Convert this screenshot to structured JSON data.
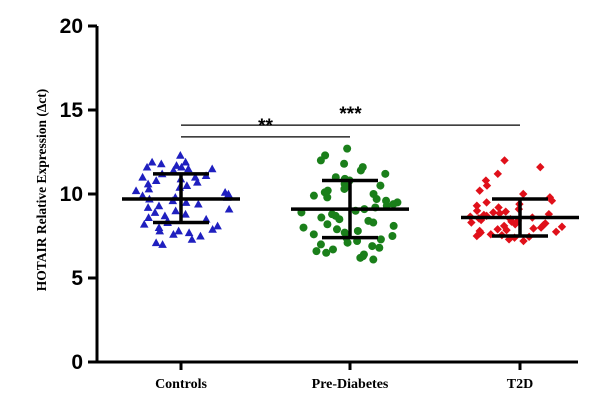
{
  "chart_data": {
    "type": "scatter",
    "ylabel": "HOTAIR Relative Expression (Δct)",
    "ylim": [
      0,
      20
    ],
    "yticks": [
      "0",
      "5",
      "10",
      "15",
      "20"
    ],
    "categories": [
      "Controls",
      "Pre-Diabetes",
      "T2D"
    ],
    "series": [
      {
        "category": "Controls",
        "marker": "triangle",
        "color": "#1f1fbf",
        "mean": 9.7,
        "sd_low": 8.3,
        "sd_high": 11.2,
        "values": [
          12.3,
          11.9,
          11.9,
          11.8,
          11.7,
          11.6,
          11.6,
          11.5,
          11.5,
          11.4,
          11.2,
          11.1,
          11.0,
          11.0,
          10.9,
          10.8,
          10.7,
          10.6,
          10.5,
          10.4,
          10.3,
          10.2,
          10.1,
          10.0,
          9.9,
          9.8,
          9.8,
          9.7,
          9.6,
          9.5,
          9.4,
          9.3,
          9.2,
          9.1,
          9.0,
          8.9,
          8.8,
          8.7,
          8.6,
          8.5,
          8.4,
          8.3,
          8.2,
          8.1,
          8.0,
          7.9,
          7.8,
          7.8,
          7.7,
          7.6,
          7.5,
          7.3,
          7.1,
          7.0
        ]
      },
      {
        "category": "Pre-Diabetes",
        "marker": "circle",
        "color": "#1a7f1a",
        "mean": 9.1,
        "sd_low": 7.4,
        "sd_high": 10.8,
        "values": [
          12.7,
          12.3,
          12.0,
          11.8,
          11.6,
          11.4,
          11.2,
          11.0,
          10.9,
          10.8,
          10.6,
          10.5,
          10.4,
          10.3,
          10.2,
          10.1,
          10.0,
          9.9,
          9.8,
          9.7,
          9.6,
          9.5,
          9.4,
          9.3,
          9.2,
          9.1,
          9.0,
          8.9,
          8.8,
          8.7,
          8.6,
          8.5,
          8.4,
          8.3,
          8.2,
          8.1,
          8.0,
          7.9,
          7.8,
          7.7,
          7.6,
          7.5,
          7.4,
          7.3,
          7.2,
          7.1,
          7.0,
          6.9,
          6.8,
          6.7,
          6.6,
          6.5,
          6.4,
          6.3,
          6.2,
          6.1
        ]
      },
      {
        "category": "T2D",
        "marker": "diamond",
        "color": "#e0101a",
        "mean": 8.6,
        "sd_low": 7.5,
        "sd_high": 9.7,
        "values": [
          12.0,
          11.6,
          11.2,
          10.8,
          10.5,
          10.2,
          10.0,
          9.8,
          9.6,
          9.5,
          9.4,
          9.3,
          9.2,
          9.1,
          9.0,
          8.95,
          8.9,
          8.85,
          8.8,
          8.75,
          8.7,
          8.65,
          8.6,
          8.55,
          8.5,
          8.45,
          8.4,
          8.35,
          8.3,
          8.25,
          8.2,
          8.15,
          8.1,
          8.05,
          8.0,
          7.95,
          7.9,
          7.85,
          7.8,
          7.75,
          7.7,
          7.65,
          7.6,
          7.55,
          7.5,
          7.45,
          7.4,
          7.3,
          7.2
        ]
      }
    ],
    "significance": [
      {
        "from": "Controls",
        "to": "Pre-Diabetes",
        "y": 13.4,
        "label": "**"
      },
      {
        "from": "Controls",
        "to": "T2D",
        "y": 14.1,
        "label": "***"
      }
    ]
  }
}
